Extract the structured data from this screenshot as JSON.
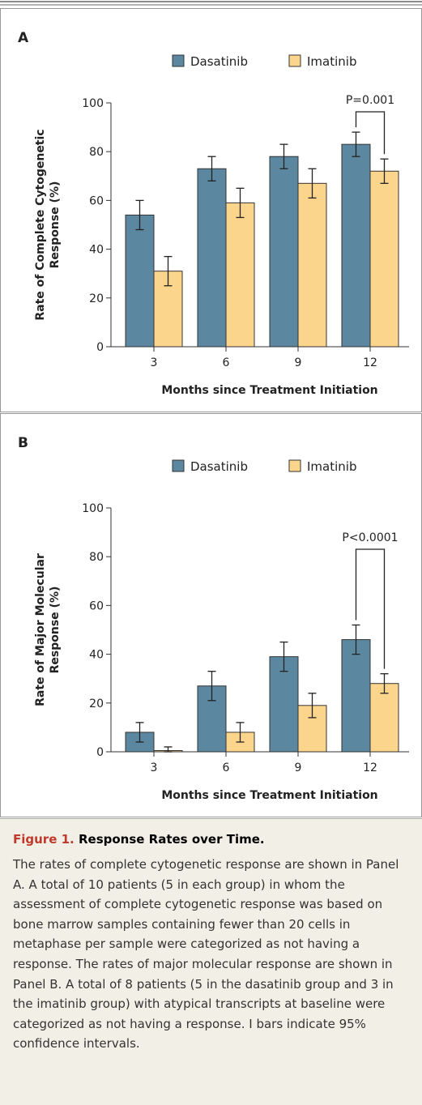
{
  "chart_data": [
    {
      "type": "bar",
      "panel": "A",
      "y_label": [
        "Rate of Complete Cytogenetic",
        "Response (%)"
      ],
      "x_label": "Months since Treatment Initiation",
      "categories": [
        "3",
        "6",
        "9",
        "12"
      ],
      "series": [
        {
          "name": "Dasatinib",
          "color": "#5b87a0",
          "values": [
            54,
            73,
            78,
            83
          ],
          "errors": [
            6,
            5,
            5,
            5
          ]
        },
        {
          "name": "Imatinib",
          "color": "#fcd58c",
          "values": [
            31,
            59,
            67,
            72
          ],
          "errors": [
            6,
            6,
            6,
            5
          ]
        }
      ],
      "ylim": [
        0,
        100
      ],
      "yticks": [
        0,
        20,
        40,
        60,
        80,
        100
      ],
      "annotation": "P=0.001"
    },
    {
      "type": "bar",
      "panel": "B",
      "y_label": [
        "Rate of Major Molecular",
        "Response (%)"
      ],
      "x_label": "Months since Treatment Initiation",
      "categories": [
        "3",
        "6",
        "9",
        "12"
      ],
      "series": [
        {
          "name": "Dasatinib",
          "color": "#5b87a0",
          "values": [
            8,
            27,
            39,
            46
          ],
          "errors": [
            4,
            6,
            6,
            6
          ]
        },
        {
          "name": "Imatinib",
          "color": "#fcd58c",
          "values": [
            0.5,
            8,
            19,
            28
          ],
          "errors": [
            1.5,
            4,
            5,
            4
          ]
        }
      ],
      "ylim": [
        0,
        100
      ],
      "yticks": [
        0,
        20,
        40,
        60,
        80,
        100
      ],
      "annotation": "P<0.0001"
    }
  ],
  "caption": {
    "label": "Figure 1.",
    "title": "Response Rates over Time.",
    "text": "The rates of complete cytogenetic response are shown in Panel A. A total of 10 patients (5 in each group) in whom the assessment of complete cytogenetic response was based on bone marrow samples containing fewer than 20 cells in metaphase per sample were categorized as not having a response. The rates of major molecular response are shown in Panel B. A total of 8 patients (5 in the dasatinib group and 3 in the imatinib group) with atypical transcripts at baseline were categorized as not having a response. I bars indicate 95% confidence intervals."
  }
}
